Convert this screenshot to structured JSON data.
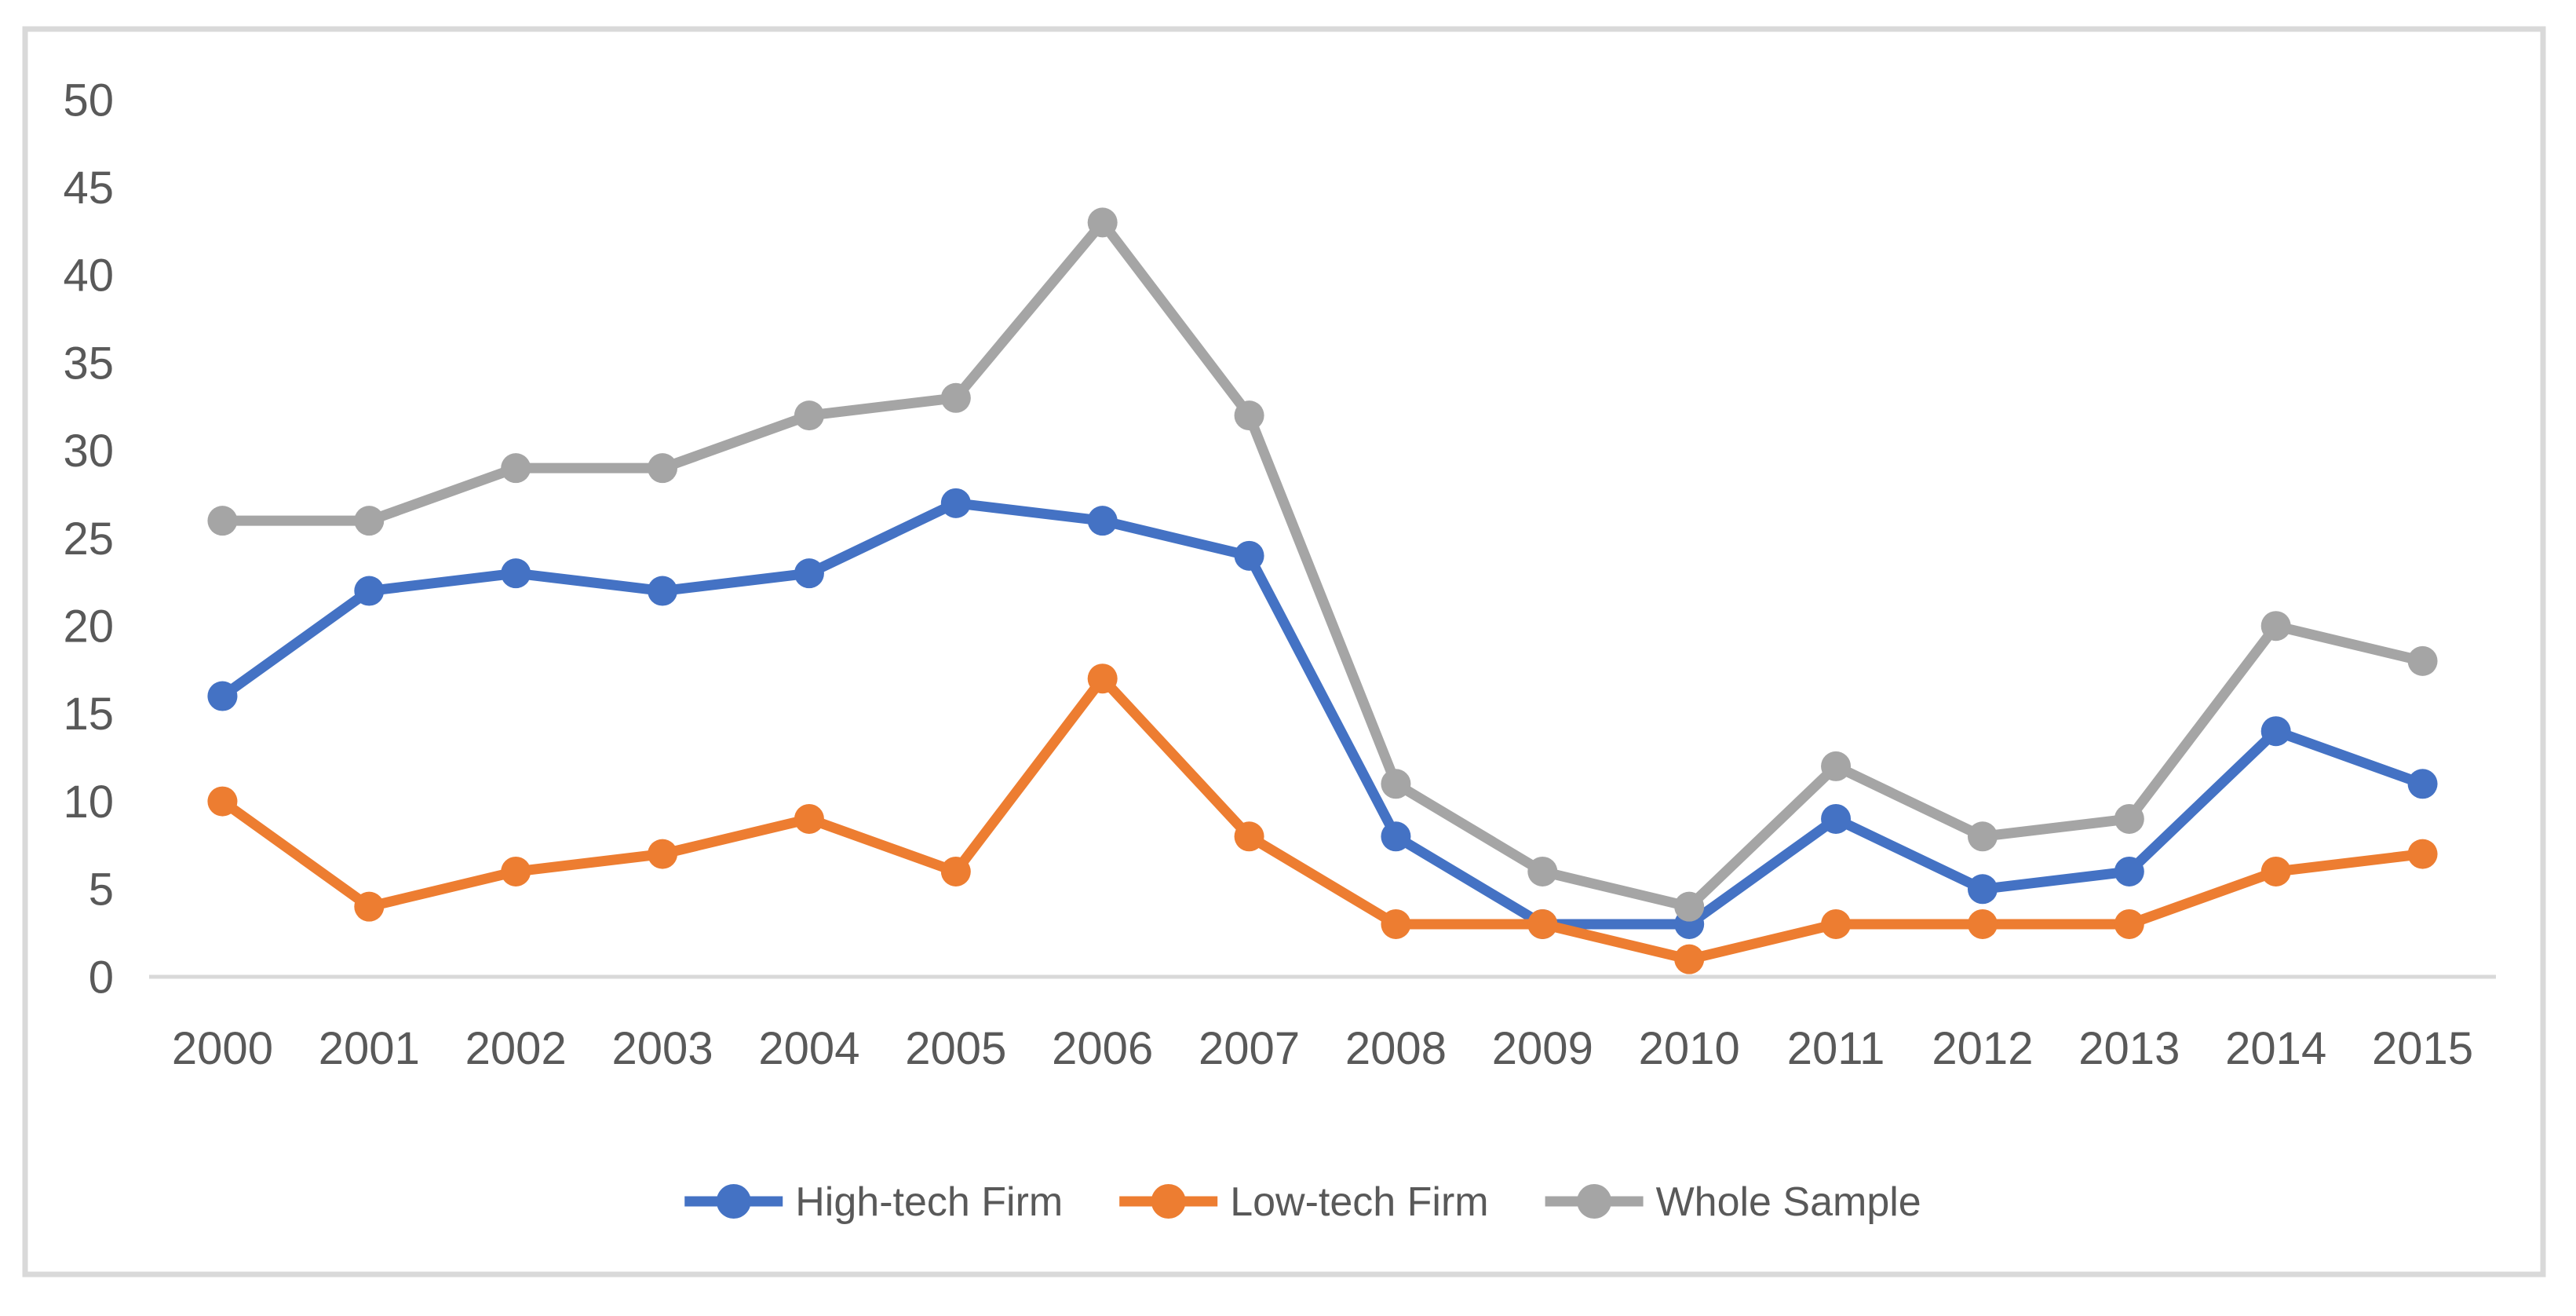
{
  "chart_data": {
    "type": "line",
    "title": "",
    "xlabel": "",
    "ylabel": "",
    "categories": [
      "2000",
      "2001",
      "2002",
      "2003",
      "2004",
      "2005",
      "2006",
      "2007",
      "2008",
      "2009",
      "2010",
      "2011",
      "2012",
      "2013",
      "2014",
      "2015"
    ],
    "series": [
      {
        "name": "High-tech Firm",
        "color": "#4472C4",
        "values": [
          16,
          22,
          23,
          22,
          23,
          27,
          26,
          24,
          8,
          3,
          3,
          9,
          5,
          6,
          14,
          11
        ]
      },
      {
        "name": "Low-tech Firm",
        "color": "#ED7D31",
        "values": [
          10,
          4,
          6,
          7,
          9,
          6,
          17,
          8,
          3,
          3,
          1,
          3,
          3,
          3,
          6,
          7
        ]
      },
      {
        "name": "Whole Sample",
        "color": "#A5A5A5",
        "values": [
          26,
          26,
          29,
          29,
          32,
          33,
          43,
          32,
          11,
          6,
          4,
          12,
          8,
          9,
          20,
          18
        ]
      }
    ],
    "ylim": [
      0,
      50
    ],
    "ytick_step": 5,
    "ytick_labels": [
      "0",
      "5",
      "10",
      "15",
      "20",
      "25",
      "30",
      "35",
      "40",
      "45",
      "50"
    ],
    "grid": false,
    "legend_position": "bottom",
    "marker": "circle",
    "line_style": "solid"
  },
  "colors": {
    "background": "#FFFFFF",
    "frame_border": "#D9D9D9",
    "axis_line": "#D9D9D9",
    "tick_label": "#595959",
    "legend_label": "#595959"
  }
}
